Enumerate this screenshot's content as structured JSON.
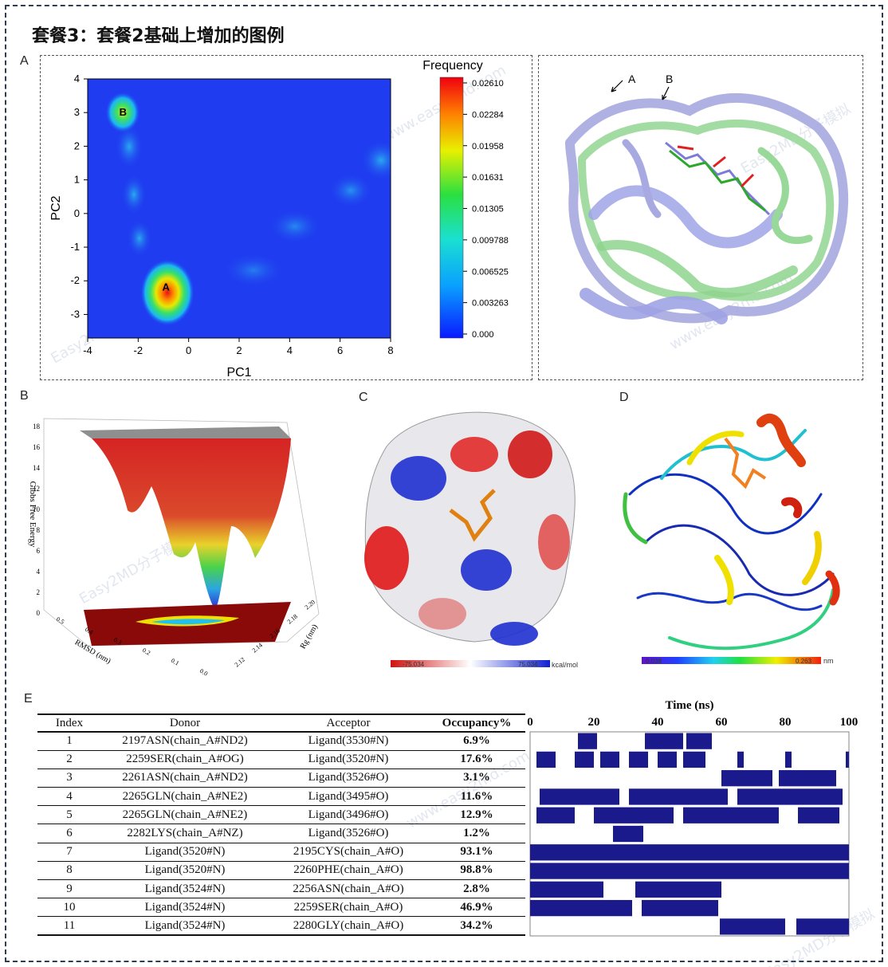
{
  "title": "套餐3：套餐2基础上增加的图例",
  "panels": {
    "a": "A",
    "b": "B",
    "c": "C",
    "d": "D",
    "e": "E"
  },
  "watermark": {
    "brand": "Easy2MD",
    "text": "Easy2MD分子模拟",
    "url": "www.easy2md.com"
  },
  "colors": {
    "frame": "#2e3d52",
    "hb_bar": "#1a1a8c",
    "background_blue": "#1f3cf0"
  },
  "panel_a_fel": {
    "xlabel": "PC1",
    "ylabel": "PC2",
    "xticks": [
      "-4",
      "-2",
      "0",
      "2",
      "4",
      "6",
      "8"
    ],
    "yticks": [
      "4",
      "3",
      "2",
      "1",
      "0",
      "-1",
      "-2",
      "-3"
    ],
    "basin_labels": [
      "A",
      "B"
    ],
    "colorbar_title": "Frequency",
    "colorbar_ticks": [
      "0.02610",
      "0.02284",
      "0.01958",
      "0.01631",
      "0.01305",
      "0.009788",
      "0.006525",
      "0.003263",
      "0.000"
    ]
  },
  "chart_data": {
    "type": "heatmap",
    "title": "Frequency",
    "xlabel": "PC1",
    "ylabel": "PC2",
    "xlim": [
      -4,
      8
    ],
    "ylim": [
      -3.7,
      4
    ],
    "color_range": [
      0.0,
      0.0261
    ],
    "basins": [
      {
        "name": "A",
        "pc1": -0.9,
        "pc2": -2.2,
        "frequency": 0.0261
      },
      {
        "name": "B",
        "pc1": -2.6,
        "pc2": 3.0,
        "frequency": 0.017
      }
    ]
  },
  "panel_a_structure": {
    "labels": [
      "A",
      "B"
    ]
  },
  "panel_b": {
    "zlabel": "Gibbs Free Energy",
    "xlabel": "RMSD (nm)",
    "ylabel": "Rg (nm)",
    "zticks": [
      "18",
      "16",
      "14",
      "12",
      "10",
      "8",
      "6",
      "4",
      "2",
      "0"
    ],
    "xticks": [
      "0.5",
      "0.4",
      "0.3",
      "0.2",
      "0.1",
      "0.0"
    ],
    "yticks": [
      "2.20",
      "2.18",
      "2.16",
      "2.14",
      "2.12"
    ]
  },
  "panel_c": {
    "scale_min": "-75.034",
    "scale_max": "75.034",
    "unit": "kcal/mol"
  },
  "panel_d": {
    "scale_min": "0.038",
    "scale_max": "0.263",
    "unit": "nm"
  },
  "panel_e": {
    "headers": [
      "Index",
      "Donor",
      "Acceptor",
      "Occupancy%"
    ],
    "rows": [
      {
        "index": "1",
        "donor": "2197ASN(chain_A#ND2)",
        "acceptor": "Ligand(3530#N)",
        "occupancy": "6.9%"
      },
      {
        "index": "2",
        "donor": "2259SER(chain_A#OG)",
        "acceptor": "Ligand(3520#N)",
        "occupancy": "17.6%"
      },
      {
        "index": "3",
        "donor": "2261ASN(chain_A#ND2)",
        "acceptor": "Ligand(3526#O)",
        "occupancy": "3.1%"
      },
      {
        "index": "4",
        "donor": "2265GLN(chain_A#NE2)",
        "acceptor": "Ligand(3495#O)",
        "occupancy": "11.6%"
      },
      {
        "index": "5",
        "donor": "2265GLN(chain_A#NE2)",
        "acceptor": "Ligand(3496#O)",
        "occupancy": "12.9%"
      },
      {
        "index": "6",
        "donor": "2282LYS(chain_A#NZ)",
        "acceptor": "Ligand(3526#O)",
        "occupancy": "1.2%"
      },
      {
        "index": "7",
        "donor": "Ligand(3520#N)",
        "acceptor": "2195CYS(chain_A#O)",
        "occupancy": "93.1%"
      },
      {
        "index": "8",
        "donor": "Ligand(3520#N)",
        "acceptor": "2260PHE(chain_A#O)",
        "occupancy": "98.8%"
      },
      {
        "index": "9",
        "donor": "Ligand(3524#N)",
        "acceptor": "2256ASN(chain_A#O)",
        "occupancy": "2.8%"
      },
      {
        "index": "10",
        "donor": "Ligand(3524#N)",
        "acceptor": "2259SER(chain_A#O)",
        "occupancy": "46.9%"
      },
      {
        "index": "11",
        "donor": "Ligand(3524#N)",
        "acceptor": "2280GLY(chain_A#O)",
        "occupancy": "34.2%"
      }
    ],
    "timeline": {
      "title": "Time (ns)",
      "ticks": [
        "0",
        "20",
        "40",
        "60",
        "80",
        "100"
      ],
      "xlim": [
        0,
        100
      ],
      "occupied_intervals_ns": [
        [
          [
            15,
            21
          ],
          [
            36,
            48
          ],
          [
            49,
            57
          ]
        ],
        [
          [
            2,
            8
          ],
          [
            14,
            20
          ],
          [
            22,
            28
          ],
          [
            31,
            37
          ],
          [
            40,
            46
          ],
          [
            48,
            55
          ],
          [
            65,
            67
          ],
          [
            80,
            82
          ],
          [
            99,
            100
          ]
        ],
        [
          [
            60,
            76
          ],
          [
            78,
            96
          ]
        ],
        [
          [
            3,
            28
          ],
          [
            31,
            62
          ],
          [
            65,
            98
          ]
        ],
        [
          [
            2,
            14
          ],
          [
            20,
            45
          ],
          [
            48,
            78
          ],
          [
            84,
            97
          ]
        ],
        [
          [
            26,
            35
          ],
          [
            34.5,
            35.5
          ]
        ],
        [
          [
            0,
            100
          ]
        ],
        [
          [
            0,
            100
          ]
        ],
        [
          [
            0,
            23
          ],
          [
            33,
            60
          ]
        ],
        [
          [
            0,
            32
          ],
          [
            35,
            59
          ]
        ],
        [
          [
            59.5,
            80
          ],
          [
            83.5,
            100
          ]
        ]
      ]
    }
  }
}
